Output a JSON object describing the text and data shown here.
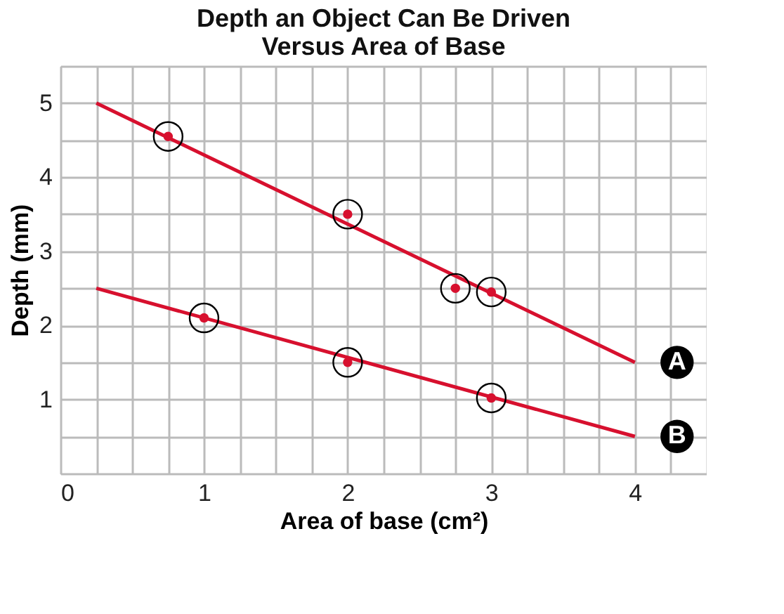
{
  "chart_data": {
    "type": "scatter",
    "title": [
      "Depth an Object Can Be Driven",
      "Versus Area of Base"
    ],
    "xlabel": "Area of base (cm²)",
    "ylabel": "Depth (mm)",
    "xlim": [
      0,
      4.5
    ],
    "ylim": [
      0,
      5.5
    ],
    "xticks": [
      0,
      {
        "value": 0.25,
        "label": null
      },
      {
        "value": 0.5,
        "label": null
      },
      {
        "value": 0.75,
        "label": null
      },
      1,
      {
        "value": 1.25,
        "label": null
      },
      {
        "value": 1.5,
        "label": null
      },
      {
        "value": 1.75,
        "label": null
      },
      2,
      {
        "value": 2.25,
        "label": null
      },
      {
        "value": 2.5,
        "label": null
      },
      {
        "value": 2.75,
        "label": null
      },
      3,
      {
        "value": 3.25,
        "label": null
      },
      {
        "value": 3.5,
        "label": null
      },
      {
        "value": 3.75,
        "label": null
      },
      4,
      {
        "value": 4.25,
        "label": null
      },
      {
        "value": 4.5,
        "label": null
      }
    ],
    "yticks": [
      {
        "value": 0,
        "label": null
      },
      {
        "value": 0.5,
        "label": null
      },
      1,
      {
        "value": 1.5,
        "label": null
      },
      2,
      {
        "value": 2.5,
        "label": null
      },
      3,
      {
        "value": 3.5,
        "label": null
      },
      4,
      {
        "value": 4.5,
        "label": null
      },
      5,
      {
        "value": 5.5,
        "label": null
      }
    ],
    "grid": true,
    "marker": "circle",
    "series": [
      {
        "name": "A",
        "type": "line",
        "marker": "none",
        "color": "#d7102e",
        "x": [
          0.25,
          4
        ],
        "values": [
          5,
          1.5
        ]
      },
      {
        "color": "#d7102e",
        "x": [
          0.75,
          2,
          2.75,
          3
        ],
        "values": [
          4.55,
          3.5,
          2.5,
          2.45
        ]
      },
      {
        "name": "B",
        "type": "line",
        "marker": "none",
        "color": "#d7102e",
        "x": [
          0.25,
          4
        ],
        "values": [
          2.5,
          0.5
        ]
      },
      {
        "color": "#d7102e",
        "x": [
          1,
          2,
          3
        ],
        "values": [
          2.1,
          1.5,
          1.02
        ]
      }
    ]
  }
}
